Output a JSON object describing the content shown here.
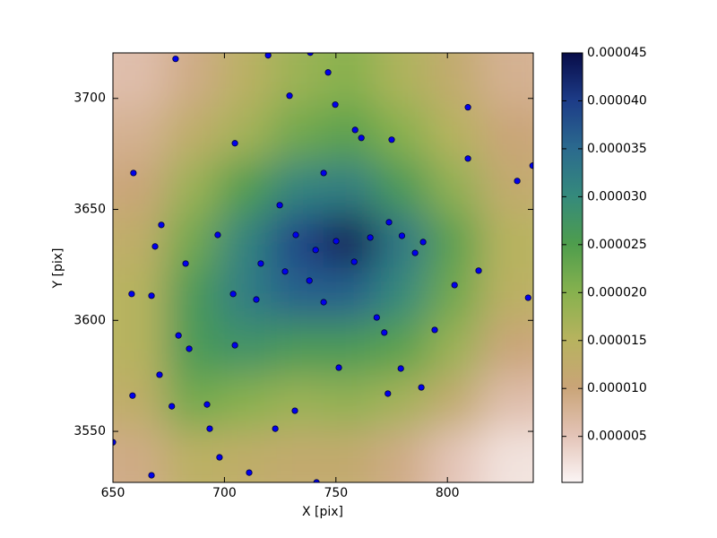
{
  "chart_data": {
    "type": "scatter",
    "xlabel": "X [pix]",
    "ylabel": "Y [pix]",
    "xlim": [
      650,
      838.5
    ],
    "ylim": [
      3527,
      3720.5
    ],
    "xticks": [
      650,
      700,
      750,
      800
    ],
    "yticks": [
      3550,
      3600,
      3650,
      3700
    ],
    "color": "#0000ee",
    "x": [
      678.1,
      719.6,
      738.5,
      746.5,
      729.2,
      749.7,
      809.2,
      758.6,
      761.4,
      775.0,
      704.7,
      809.2,
      838.2,
      659.2,
      744.5,
      831.3,
      724.8,
      773.8,
      671.7,
      697.0,
      732.0,
      779.6,
      765.4,
      750.1,
      789.1,
      668.9,
      740.9,
      785.5,
      758.2,
      682.6,
      716.3,
      727.2,
      814.0,
      738.1,
      803.2,
      658.4,
      667.3,
      703.9,
      836.2,
      714.3,
      744.5,
      768.3,
      794.3,
      771.7,
      679.4,
      684.2,
      704.7,
      751.3,
      779.1,
      670.9,
      788.3,
      658.8,
      773.3,
      676.4,
      692.2,
      731.6,
      693.4,
      722.8,
      650.0,
      697.8,
      711.1,
      667.3,
      741.3
    ],
    "y": [
      3717.8,
      3719.4,
      3720.6,
      3711.7,
      3701.2,
      3697.2,
      3696.0,
      3685.8,
      3682.2,
      3681.4,
      3679.8,
      3672.9,
      3669.7,
      3666.4,
      3666.4,
      3662.8,
      3651.9,
      3644.2,
      3643.0,
      3638.5,
      3638.5,
      3638.1,
      3637.3,
      3635.7,
      3635.3,
      3633.3,
      3631.7,
      3630.4,
      3626.4,
      3625.6,
      3625.6,
      3622.0,
      3622.4,
      3617.9,
      3615.9,
      3611.9,
      3611.1,
      3611.9,
      3610.2,
      3609.4,
      3608.2,
      3601.3,
      3595.7,
      3594.5,
      3593.2,
      3587.2,
      3588.8,
      3578.7,
      3578.3,
      3575.5,
      3569.8,
      3566.1,
      3567.0,
      3561.3,
      3562.1,
      3559.3,
      3551.2,
      3551.2,
      3545.1,
      3538.3,
      3531.4,
      3530.2,
      3527.0
    ],
    "z": [
      [
        6e-06,
        9e-06,
        1.4e-05,
        1.8e-05,
        2e-05,
        1.6e-05,
        1.2e-05,
        8e-06
      ],
      [
        8e-06,
        1.3e-05,
        1.7e-05,
        2.2e-05,
        2.4e-05,
        2e-05,
        1.5e-05,
        1e-05
      ],
      [
        1e-05,
        1.8e-05,
        2.5e-05,
        3.1e-05,
        3.2e-05,
        2.6e-05,
        1.9e-05,
        1.2e-05
      ],
      [
        1.3e-05,
        2.2e-05,
        3.1e-05,
        3.9e-05,
        4.4e-05,
        3.3e-05,
        2.4e-05,
        1.5e-05
      ],
      [
        1.5e-05,
        2.6e-05,
        3.2e-05,
        3.6e-05,
        3.6e-05,
        3e-05,
        2.2e-05,
        1.4e-05
      ],
      [
        1.5e-05,
        2.6e-05,
        2.8e-05,
        2.6e-05,
        2.6e-05,
        2.4e-05,
        1.8e-05,
        1e-05
      ],
      [
        1.3e-05,
        2.2e-05,
        2e-05,
        1.8e-05,
        1.9e-05,
        1.7e-05,
        1.2e-05,
        6e-06
      ],
      [
        9e-06,
        1.4e-05,
        1.3e-05,
        1.2e-05,
        1.2e-05,
        9e-06,
        5e-06,
        2e-06
      ]
    ],
    "clim": [
      2e-07,
      4.5e-05
    ],
    "colorscale": [
      "#fbf5f5",
      "#e3c3b6",
      "#c9a477",
      "#b7b35e",
      "#86b14e",
      "#4e9d4d",
      "#358a7c",
      "#2b6a8e",
      "#1d3c88",
      "#080c48"
    ],
    "cticks": [
      {
        "value": 5e-06,
        "label": "0.000005"
      },
      {
        "value": 1e-05,
        "label": "0.000010"
      },
      {
        "value": 1.5e-05,
        "label": "0.000015"
      },
      {
        "value": 2e-05,
        "label": "0.000020"
      },
      {
        "value": 2.5e-05,
        "label": "0.000025"
      },
      {
        "value": 3e-05,
        "label": "0.000030"
      },
      {
        "value": 3.5e-05,
        "label": "0.000035"
      },
      {
        "value": 4e-05,
        "label": "0.000040"
      },
      {
        "value": 4.5e-05,
        "label": "0.000045"
      }
    ]
  }
}
